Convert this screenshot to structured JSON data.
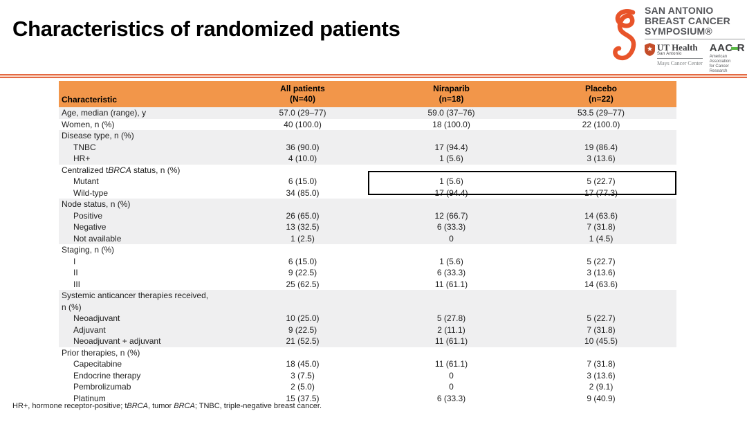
{
  "slide": {
    "title": "Characteristics of randomized patients",
    "footnote_segments": [
      {
        "t": "HR+, hormone receptor-positive; t"
      },
      {
        "t": "BRCA",
        "i": true
      },
      {
        "t": ", tumor "
      },
      {
        "t": "BRCA",
        "i": true
      },
      {
        "t": "; TNBC, triple-negative breast cancer."
      }
    ]
  },
  "logo": {
    "symposium_lines": [
      "SAN ANTONIO",
      "BREAST CANCER",
      "SYMPOSIUM®"
    ],
    "uthealth": {
      "name": "UT Health",
      "location": "San Antonio",
      "center": "Mays Cancer Center"
    },
    "aacr": {
      "acronym_left": "AAC",
      "acronym_right": "R",
      "sub_line1": "American Association",
      "sub_line2": "for Cancer Research"
    }
  },
  "colors": {
    "header_orange": "#F2964A",
    "band_gray": "#EFEFF0",
    "divider_salmon": "#E46A44",
    "ribbon_orange": "#E8542A",
    "aacr_green": "#5CB947",
    "ut_shield": "#C44D29",
    "highlight_border": "#000000"
  },
  "table": {
    "columns": [
      {
        "line1": "Characteristic",
        "line2": ""
      },
      {
        "line1": "All patients",
        "line2": "(N=40)"
      },
      {
        "line1": "Niraparib",
        "line2": "(n=18)"
      },
      {
        "line1": "Placebo",
        "line2": "(n=22)"
      }
    ],
    "rows": [
      {
        "label": "Age, median (range), y",
        "indent": 0,
        "band": "gray",
        "values": [
          "57.0 (29–77)",
          "59.0 (37–76)",
          "53.5 (29–77)"
        ]
      },
      {
        "label": "Women, n (%)",
        "indent": 0,
        "band": "white",
        "values": [
          "40 (100.0)",
          "18 (100.0)",
          "22 (100.0)"
        ]
      },
      {
        "label": "Disease type, n (%)",
        "indent": 0,
        "band": "gray",
        "values": null
      },
      {
        "label": "TNBC",
        "indent": 1,
        "band": "gray",
        "values": [
          "36 (90.0)",
          "17 (94.4)",
          "19 (86.4)"
        ]
      },
      {
        "label": "HR+",
        "indent": 1,
        "band": "gray",
        "values": [
          "4 (10.0)",
          "1 (5.6)",
          "3 (13.6)"
        ]
      },
      {
        "segments": [
          {
            "t": "Centralized t"
          },
          {
            "t": "BRCA",
            "i": true
          },
          {
            "t": " status, n (%)"
          }
        ],
        "indent": 0,
        "band": "white",
        "values": null
      },
      {
        "label": "Mutant",
        "indent": 1,
        "band": "white",
        "values": [
          "6 (15.0)",
          "1 (5.6)",
          "5 (22.7)"
        ]
      },
      {
        "label": "Wild-type",
        "indent": 1,
        "band": "white",
        "values": [
          "34 (85.0)",
          "17 (94.4)",
          "17 (77.3)"
        ]
      },
      {
        "label": "Node status, n (%)",
        "indent": 0,
        "band": "gray",
        "values": null
      },
      {
        "label": "Positive",
        "indent": 1,
        "band": "gray",
        "values": [
          "26 (65.0)",
          "12 (66.7)",
          "14 (63.6)"
        ]
      },
      {
        "label": "Negative",
        "indent": 1,
        "band": "gray",
        "values": [
          "13 (32.5)",
          "6 (33.3)",
          "7 (31.8)"
        ]
      },
      {
        "label": "Not available",
        "indent": 1,
        "band": "gray",
        "values": [
          "1 (2.5)",
          "0",
          "1 (4.5)"
        ]
      },
      {
        "label": "Staging, n (%)",
        "indent": 0,
        "band": "white",
        "values": null
      },
      {
        "label": "I",
        "indent": 1,
        "band": "white",
        "values": [
          "6 (15.0)",
          "1 (5.6)",
          "5 (22.7)"
        ]
      },
      {
        "label": "II",
        "indent": 1,
        "band": "white",
        "values": [
          "9 (22.5)",
          "6 (33.3)",
          "3 (13.6)"
        ]
      },
      {
        "label": "III",
        "indent": 1,
        "band": "white",
        "values": [
          "25 (62.5)",
          "11 (61.1)",
          "14 (63.6)"
        ]
      },
      {
        "label": "Systemic anticancer therapies received,\nn (%)",
        "indent": 0,
        "band": "gray",
        "values": null
      },
      {
        "label": "Neoadjuvant",
        "indent": 1,
        "band": "gray",
        "values": [
          "10 (25.0)",
          "5 (27.8)",
          "5 (22.7)"
        ]
      },
      {
        "label": "Adjuvant",
        "indent": 1,
        "band": "gray",
        "values": [
          "9 (22.5)",
          "2 (11.1)",
          "7 (31.8)"
        ]
      },
      {
        "label": "Neoadjuvant + adjuvant",
        "indent": 1,
        "band": "gray",
        "values": [
          "21 (52.5)",
          "11 (61.1)",
          "10 (45.5)"
        ]
      },
      {
        "label": "Prior therapies, n (%)",
        "indent": 0,
        "band": "white",
        "values": null
      },
      {
        "label": "Capecitabine",
        "indent": 1,
        "band": "white",
        "values": [
          "18 (45.0)",
          "11 (61.1)",
          "7 (31.8)"
        ]
      },
      {
        "label": "Endocrine therapy",
        "indent": 1,
        "band": "white",
        "values": [
          "3 (7.5)",
          "0",
          "3 (13.6)"
        ]
      },
      {
        "label": "Pembrolizumab",
        "indent": 1,
        "band": "white",
        "values": [
          "2 (5.0)",
          "0",
          "2 (9.1)"
        ]
      },
      {
        "label": "Platinum",
        "indent": 1,
        "band": "white",
        "values": [
          "15 (37.5)",
          "6 (33.3)",
          "9 (40.9)"
        ]
      }
    ]
  }
}
